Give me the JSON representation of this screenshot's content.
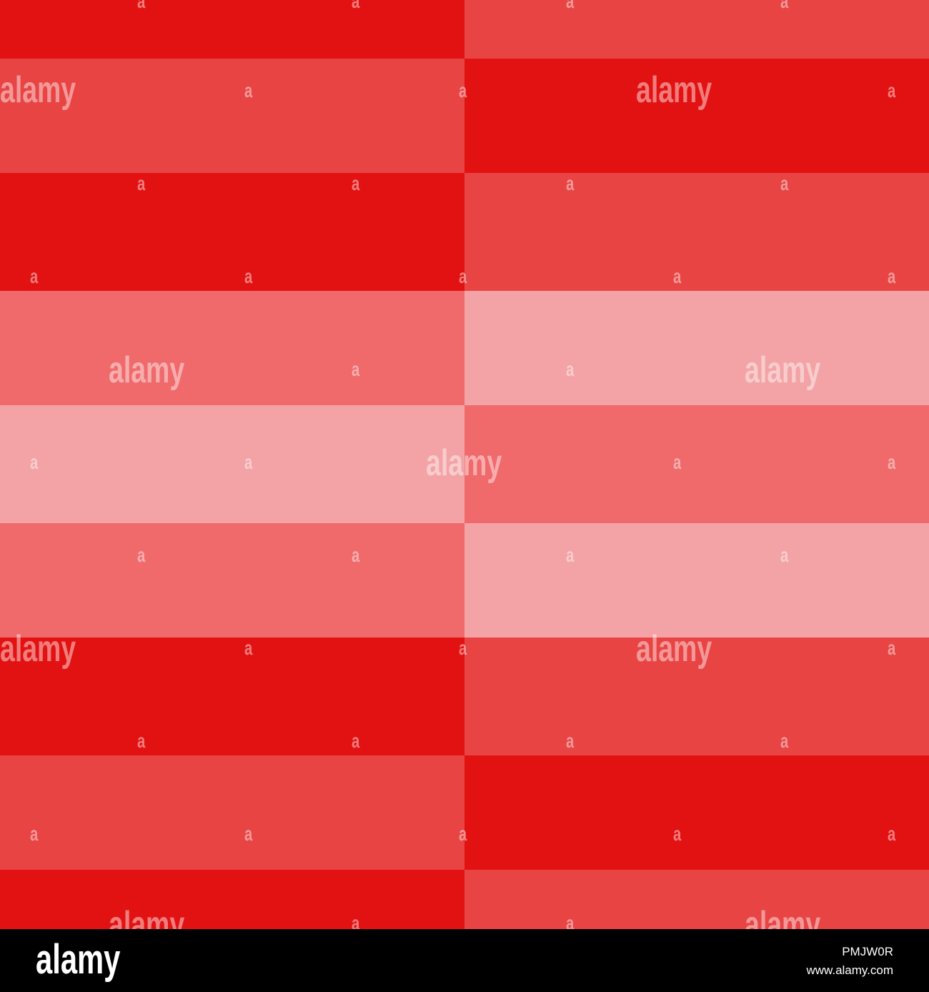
{
  "colors": {
    "dark": "#e31212",
    "medium": "#e94444",
    "light": "#f06a6c",
    "pale": "#f3a3a5",
    "footer_bg": "#000000",
    "footer_text": "#ffffff"
  },
  "pattern": {
    "rows": [
      [
        "dark",
        "medium"
      ],
      [
        "medium",
        "dark"
      ],
      [
        "dark",
        "medium"
      ],
      [
        "light",
        "pale"
      ],
      [
        "pale",
        "light"
      ],
      [
        "light",
        "pale"
      ],
      [
        "dark",
        "medium"
      ],
      [
        "medium",
        "dark"
      ],
      [
        "dark",
        "medium"
      ]
    ]
  },
  "watermark": {
    "word": "alamy",
    "letter": "a"
  },
  "footer": {
    "logo": "alamy",
    "image_id": "PMJW0R",
    "url": "www.alamy.com"
  }
}
